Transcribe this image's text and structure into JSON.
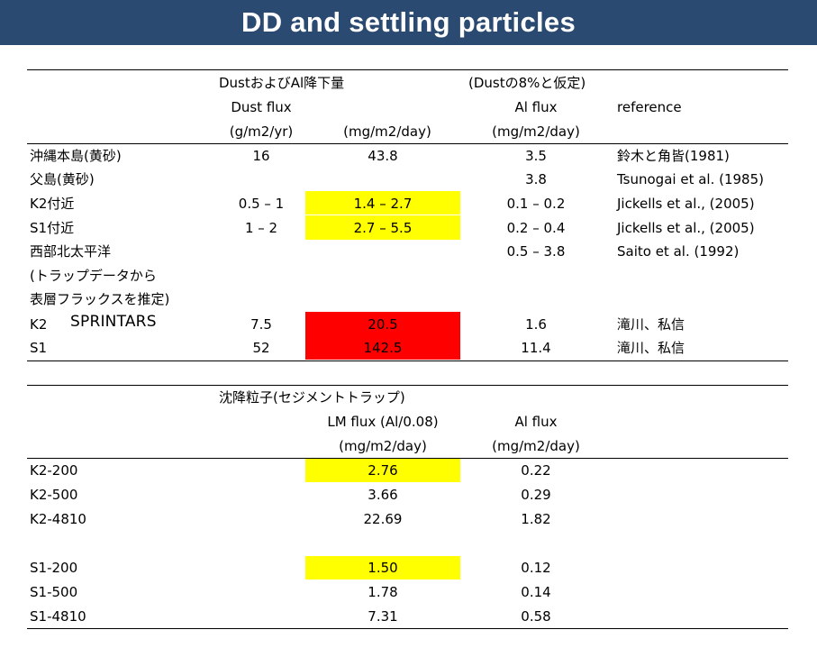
{
  "title": "DD and settling particles",
  "colors": {
    "title_bar": "#2b4a72",
    "highlight_yellow": "#ffff00",
    "highlight_red": "#ff0000"
  },
  "dust_table": {
    "header_row1": {
      "group": "DustおよびAl降下量",
      "assumption": "(Dustの8%と仮定)"
    },
    "header_row2": {
      "dust_flux": "Dust flux",
      "al_flux": "Al flux",
      "reference": "reference"
    },
    "header_row3": {
      "unit_yr": "(g/m2/yr)",
      "unit_day": "(mg/m2/day)",
      "unit_al": "(mg/m2/day)"
    },
    "rows": [
      {
        "site": "沖縄本島(黄砂)",
        "dust": "16",
        "mg": "43.8",
        "al": "3.5",
        "ref": "鈴木と角皆(1981)"
      },
      {
        "site": "父島(黄砂)",
        "dust": "",
        "mg": "",
        "al": "3.8",
        "ref": "Tsunogai et al. (1985)"
      },
      {
        "site": "K2付近",
        "dust": "0.5 – 1",
        "mg": "1.4 – 2.7",
        "al": "0.1 – 0.2",
        "ref": "Jickells et al., (2005)"
      },
      {
        "site": "S1付近",
        "dust": "1 – 2",
        "mg": "2.7 – 5.5",
        "al": "0.2 – 0.4",
        "ref": "Jickells et al., (2005)"
      },
      {
        "site": "西部北太平洋",
        "dust": "",
        "mg": "",
        "al": "0.5 – 3.8",
        "ref": "Saito et al. (1992)"
      },
      {
        "site": "(トラップデータから",
        "dust": "",
        "mg": "",
        "al": "",
        "ref": ""
      },
      {
        "site": "表層フラックスを推定)",
        "dust": "",
        "mg": "",
        "al": "",
        "ref": ""
      },
      {
        "site": "K2",
        "dust": "7.5",
        "mg": "20.5",
        "al": "1.6",
        "ref": "滝川、私信"
      },
      {
        "site": "S1",
        "dust": "52",
        "mg": "142.5",
        "al": "11.4",
        "ref": "滝川、私信"
      }
    ],
    "annotation": "SPRINTARS"
  },
  "trap_table": {
    "header_row1": {
      "group": "沈降粒子(セジメントトラップ)"
    },
    "header_row2": {
      "lm_flux": "LM flux (Al/0.08)",
      "al_flux": "Al flux"
    },
    "header_row3": {
      "unit_lm": "(mg/m2/day)",
      "unit_al": "(mg/m2/day)"
    },
    "rows": [
      {
        "site": "K2-200",
        "lm": "2.76",
        "al": "0.22"
      },
      {
        "site": "K2-500",
        "lm": "3.66",
        "al": "0.29"
      },
      {
        "site": "K2-4810",
        "lm": "22.69",
        "al": "1.82"
      },
      {
        "site": "S1-200",
        "lm": "1.50",
        "al": "0.12"
      },
      {
        "site": "S1-500",
        "lm": "1.78",
        "al": "0.14"
      },
      {
        "site": "S1-4810",
        "lm": "7.31",
        "al": "0.58"
      }
    ]
  }
}
